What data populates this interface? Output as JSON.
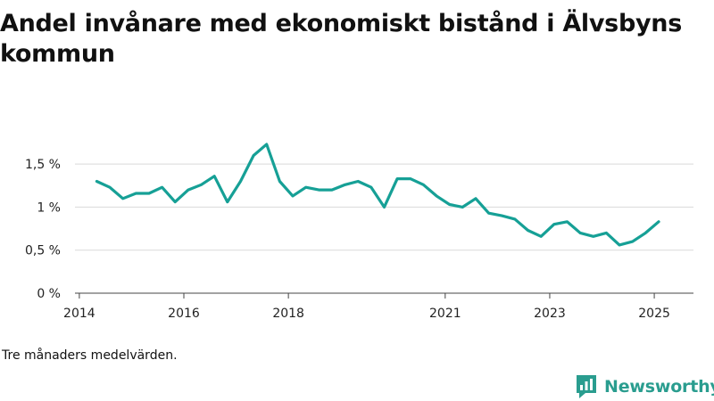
{
  "title": "Andel invånare med ekonomiskt bistånd i Älvsbyns kommun",
  "note": "Tre månaders medelvärden.",
  "brand": {
    "name": "Newsworthy",
    "icon": "newsworthy-logo-icon",
    "color": "#2a9d8f"
  },
  "chart_data": {
    "type": "line",
    "title": "Andel invånare med ekonomiskt bistånd i Älvsbyns kommun",
    "xlabel": "",
    "ylabel": "",
    "line_color": "#16a096",
    "grid": true,
    "ylim": [
      0,
      1.75
    ],
    "xlim": [
      "2013-12",
      "2025-10"
    ],
    "y_ticks": [
      {
        "value": 0,
        "label": "0 %"
      },
      {
        "value": 0.5,
        "label": "0,5 %"
      },
      {
        "value": 1,
        "label": "1 %"
      },
      {
        "value": 1.5,
        "label": "1,5 %"
      }
    ],
    "x_ticks": [
      {
        "value": "2014-01",
        "label": "2014"
      },
      {
        "value": "2016-01",
        "label": "2016"
      },
      {
        "value": "2018-01",
        "label": "2018"
      },
      {
        "value": "2021-01",
        "label": "2021"
      },
      {
        "value": "2023-01",
        "label": "2023"
      },
      {
        "value": "2025-01",
        "label": "2025"
      }
    ],
    "x": [
      "2014-05",
      "2014-08",
      "2014-11",
      "2015-02",
      "2015-05",
      "2015-08",
      "2015-11",
      "2016-02",
      "2016-05",
      "2016-08",
      "2016-11",
      "2017-02",
      "2017-05",
      "2017-08",
      "2017-11",
      "2018-02",
      "2018-05",
      "2018-08",
      "2018-11",
      "2019-02",
      "2019-05",
      "2019-08",
      "2019-11",
      "2020-02",
      "2020-05",
      "2020-08",
      "2020-11",
      "2021-02",
      "2021-05",
      "2021-08",
      "2021-11",
      "2022-02",
      "2022-05",
      "2022-08",
      "2022-11",
      "2023-02",
      "2023-05",
      "2023-08",
      "2023-11",
      "2024-02",
      "2024-05",
      "2024-08",
      "2024-11",
      "2025-02"
    ],
    "series": [
      {
        "values": [
          1.3,
          1.23,
          1.1,
          1.16,
          1.16,
          1.23,
          1.06,
          1.2,
          1.26,
          1.36,
          1.06,
          1.3,
          1.6,
          1.73,
          1.3,
          1.13,
          1.23,
          1.2,
          1.2,
          1.26,
          1.3,
          1.23,
          1.0,
          1.33,
          1.33,
          1.26,
          1.13,
          1.03,
          1.0,
          1.1,
          0.93,
          0.9,
          0.86,
          0.73,
          0.66,
          0.8,
          0.83,
          0.7,
          0.66,
          0.7,
          0.56,
          0.6,
          0.7,
          0.83
        ]
      }
    ]
  }
}
